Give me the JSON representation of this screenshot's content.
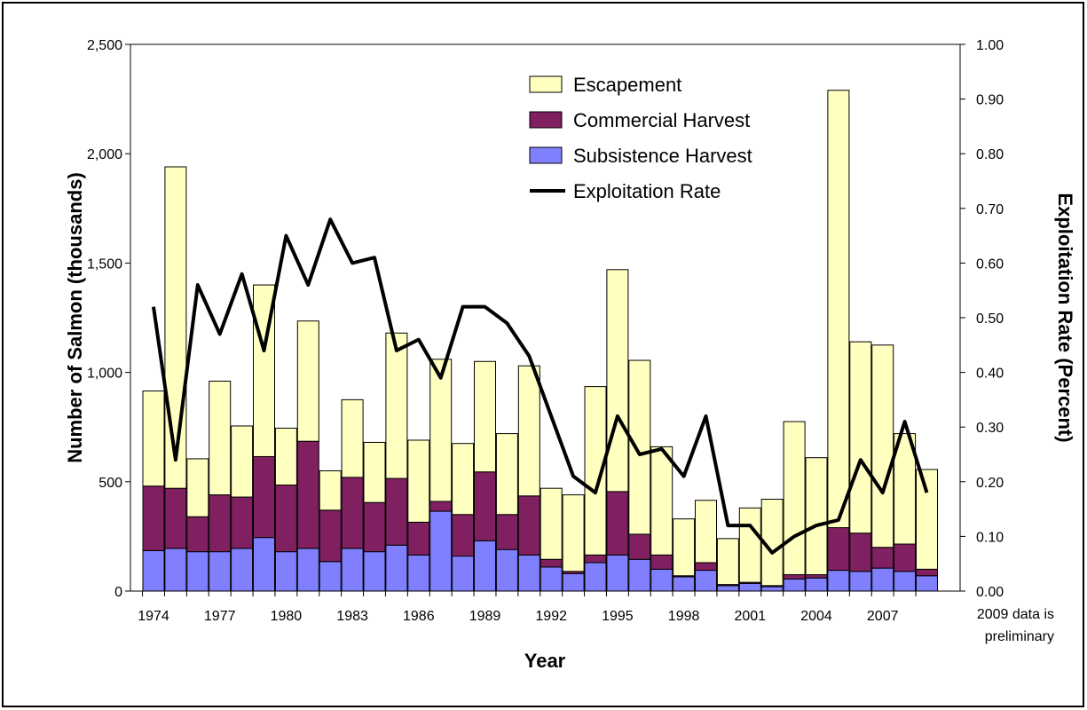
{
  "chart_data": {
    "type": "bar",
    "stacked": true,
    "x_label": "Year",
    "y_label": "Number of Salmon (thousands)",
    "y2_label": "Exploitation Rate (Percent)",
    "note": "2009 data is preliminary",
    "categories": [
      "1974",
      null,
      null,
      "1977",
      null,
      null,
      "1980",
      null,
      null,
      "1983",
      null,
      null,
      "1986",
      null,
      null,
      "1989",
      null,
      null,
      "1992",
      null,
      null,
      "1995",
      null,
      null,
      "1998",
      null,
      null,
      "2001",
      null,
      null,
      "2004",
      null,
      null,
      "2007",
      null,
      null
    ],
    "series": [
      {
        "name": "Subsistence Harvest",
        "color": "#8080ff",
        "type": "bar",
        "values": [
          185,
          195,
          180,
          180,
          195,
          245,
          180,
          195,
          135,
          195,
          180,
          210,
          165,
          365,
          160,
          230,
          190,
          165,
          110,
          80,
          130,
          165,
          145,
          100,
          65,
          95,
          25,
          35,
          20,
          55,
          60,
          95,
          90,
          105,
          90,
          70
        ]
      },
      {
        "name": "Commercial Harvest",
        "color": "#802060",
        "type": "bar",
        "values": [
          295,
          275,
          160,
          260,
          235,
          370,
          305,
          490,
          235,
          325,
          225,
          305,
          150,
          45,
          190,
          315,
          160,
          270,
          35,
          10,
          35,
          290,
          115,
          65,
          5,
          35,
          5,
          5,
          5,
          20,
          15,
          195,
          175,
          95,
          125,
          30
        ]
      },
      {
        "name": "Escapement",
        "color": "#ffffc0",
        "type": "bar",
        "values": [
          435,
          1470,
          265,
          520,
          325,
          785,
          260,
          550,
          180,
          355,
          275,
          665,
          375,
          650,
          325,
          505,
          370,
          595,
          325,
          350,
          770,
          1015,
          795,
          495,
          260,
          285,
          210,
          340,
          395,
          700,
          535,
          2000,
          875,
          925,
          505,
          456
        ]
      },
      {
        "name": "Exploitation Rate",
        "color": "#000000",
        "type": "line",
        "axis": "y2",
        "values": [
          0.52,
          0.24,
          0.56,
          0.47,
          0.58,
          0.44,
          0.65,
          0.56,
          0.68,
          0.6,
          0.61,
          0.44,
          0.46,
          0.39,
          0.52,
          0.52,
          0.49,
          0.43,
          0.32,
          0.21,
          0.18,
          0.32,
          0.25,
          0.26,
          0.21,
          0.32,
          0.12,
          0.12,
          0.07,
          0.1,
          0.12,
          0.13,
          0.24,
          0.18,
          0.31,
          0.18
        ]
      }
    ],
    "ylim": [
      0,
      2500
    ],
    "yticks": [
      0,
      500,
      {
        "value": 1000,
        "label": "1,000"
      },
      {
        "value": 1500,
        "label": "1,500"
      },
      {
        "value": 2000,
        "label": "2,000"
      },
      {
        "value": 2500,
        "label": "2,500"
      }
    ],
    "y2lim": [
      0,
      1
    ],
    "y2ticks": [
      {
        "value": 0,
        "label": "0.00"
      },
      {
        "value": 0.1,
        "label": "0.10"
      },
      {
        "value": 0.2,
        "label": "0.20"
      },
      {
        "value": 0.3,
        "label": "0.30"
      },
      {
        "value": 0.4,
        "label": "0.40"
      },
      {
        "value": 0.5,
        "label": "0.50"
      },
      {
        "value": 0.6,
        "label": "0.60"
      },
      {
        "value": 0.7,
        "label": "0.70"
      },
      {
        "value": 0.8,
        "label": "0.80"
      },
      {
        "value": 0.9,
        "label": "0.90"
      },
      {
        "value": 1,
        "label": "1.00"
      }
    ],
    "legend": "top-center",
    "grid": false
  }
}
